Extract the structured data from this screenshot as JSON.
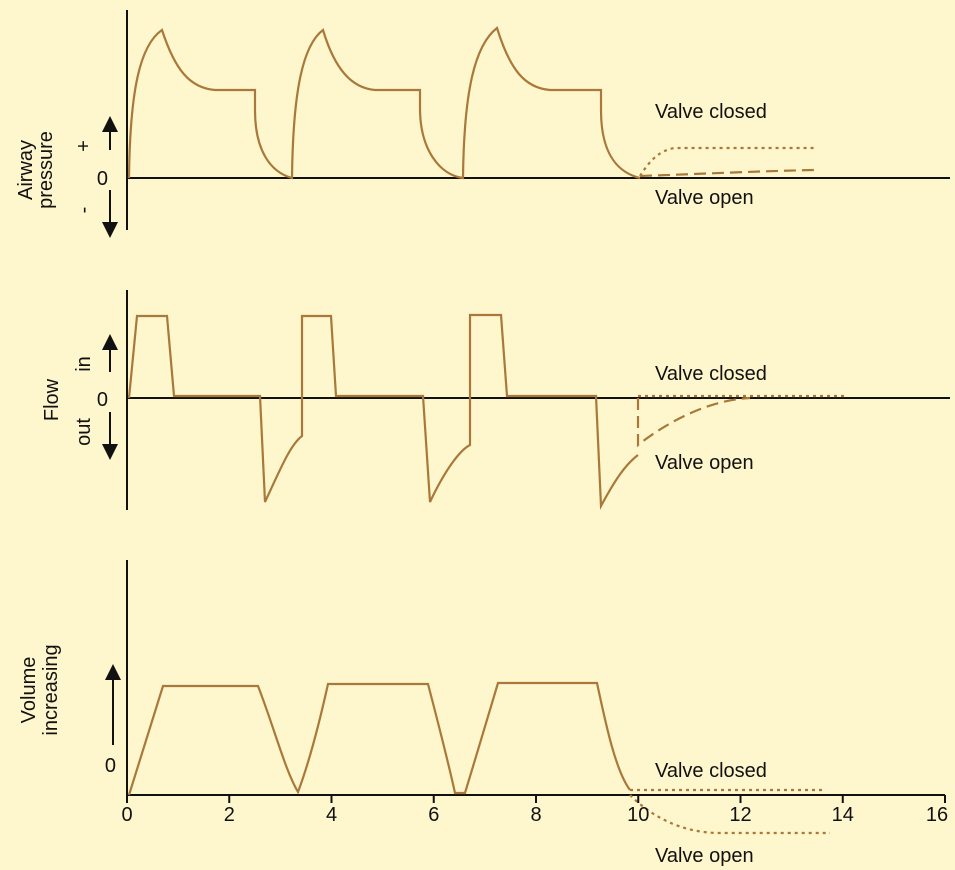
{
  "panels": [
    {
      "y_label": [
        "Airway",
        "pressure"
      ],
      "in_label": "+",
      "out_label": "-",
      "zero": "0",
      "valve_closed": "Valve closed",
      "valve_open": "Valve open"
    },
    {
      "y_label": [
        "Flow"
      ],
      "in_label": "in",
      "out_label": "out",
      "zero": "0",
      "valve_closed": "Valve closed",
      "valve_open": "Valve open"
    },
    {
      "y_label": [
        "Volume",
        "increasing"
      ],
      "zero": "0",
      "valve_closed": "Valve closed",
      "valve_open": "Valve open"
    }
  ],
  "x_axis": {
    "ticks": [
      "0",
      "2",
      "4",
      "6",
      "8",
      "10",
      "12",
      "14",
      "16"
    ]
  }
}
